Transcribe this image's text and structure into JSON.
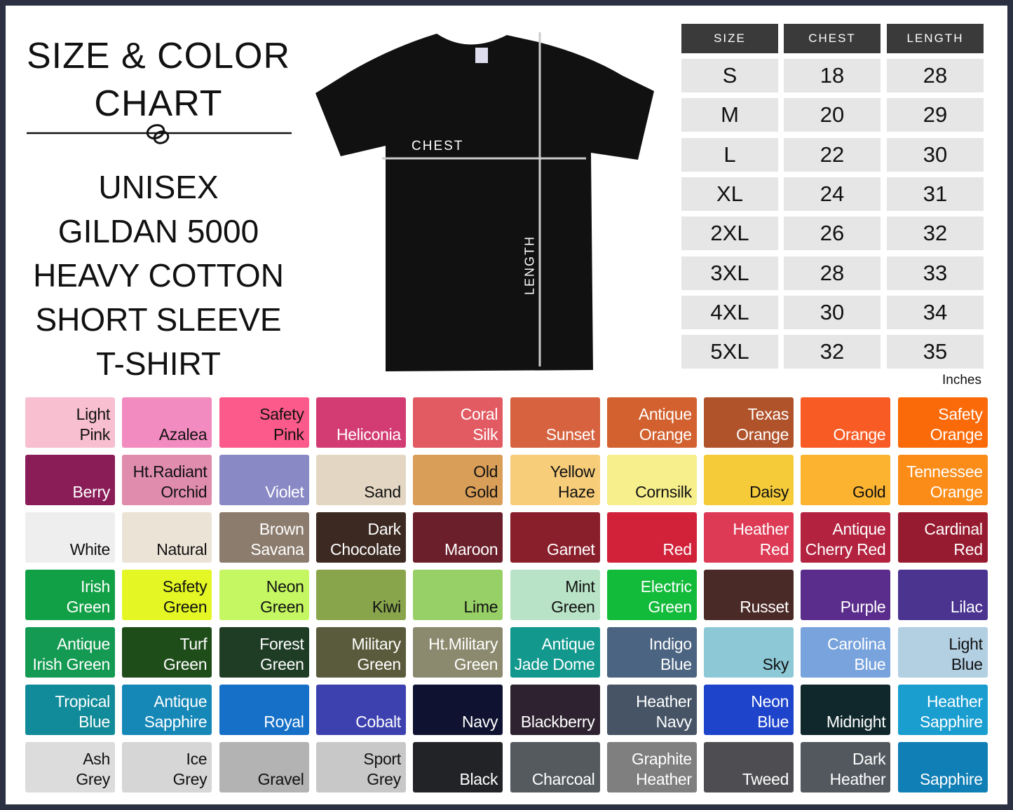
{
  "title": {
    "line1": "SIZE & COLOR",
    "line2": "CHART",
    "lines": [
      "UNISEX",
      "GILDAN 5000",
      "HEAVY COTTON",
      "SHORT SLEEVE",
      "T-SHIRT"
    ]
  },
  "shirt": {
    "chest_label": "CHEST",
    "length_label": "LENGTH",
    "color": "#111111"
  },
  "size_table": {
    "headers": [
      "SIZE",
      "CHEST",
      "LENGTH"
    ],
    "rows": [
      [
        "S",
        "18",
        "28"
      ],
      [
        "M",
        "20",
        "29"
      ],
      [
        "L",
        "22",
        "30"
      ],
      [
        "XL",
        "24",
        "31"
      ],
      [
        "2XL",
        "26",
        "32"
      ],
      [
        "3XL",
        "28",
        "33"
      ],
      [
        "4XL",
        "30",
        "34"
      ],
      [
        "5XL",
        "32",
        "35"
      ]
    ],
    "units": "Inches"
  },
  "colors": [
    {
      "name": "Light\nPink",
      "hex": "#f7bfd0",
      "text": "#111"
    },
    {
      "name": "Azalea",
      "hex": "#f28bbf",
      "text": "#111"
    },
    {
      "name": "Safety\nPink",
      "hex": "#fc5a8a",
      "text": "#111"
    },
    {
      "name": "Heliconia",
      "hex": "#d23c72",
      "text": "#fff"
    },
    {
      "name": "Coral\nSilk",
      "hex": "#e25a62",
      "text": "#fff"
    },
    {
      "name": "Sunset",
      "hex": "#d6623f",
      "text": "#fff"
    },
    {
      "name": "Antique\nOrange",
      "hex": "#d2612f",
      "text": "#fff"
    },
    {
      "name": "Texas\nOrange",
      "hex": "#b0532b",
      "text": "#fff"
    },
    {
      "name": "Orange",
      "hex": "#f85b24",
      "text": "#fff"
    },
    {
      "name": "Safety\nOrange",
      "hex": "#fb6a08",
      "text": "#fff"
    },
    {
      "name": "Berry",
      "hex": "#8a1d57",
      "text": "#fff"
    },
    {
      "name": "Ht.Radiant\nOrchid",
      "hex": "#e08cad",
      "text": "#111"
    },
    {
      "name": "Violet",
      "hex": "#8989c6",
      "text": "#fff"
    },
    {
      "name": "Sand",
      "hex": "#e3d7c3",
      "text": "#111"
    },
    {
      "name": "Old\nGold",
      "hex": "#d99e58",
      "text": "#111"
    },
    {
      "name": "Yellow\nHaze",
      "hex": "#f7cd7a",
      "text": "#111"
    },
    {
      "name": "Cornsilk",
      "hex": "#f7ef8c",
      "text": "#111"
    },
    {
      "name": "Daisy",
      "hex": "#f5cb3a",
      "text": "#111"
    },
    {
      "name": "Gold",
      "hex": "#fbb330",
      "text": "#111"
    },
    {
      "name": "Tennessee\nOrange",
      "hex": "#fb8c18",
      "text": "#fff"
    },
    {
      "name": "White",
      "hex": "#eeeeee",
      "text": "#111"
    },
    {
      "name": "Natural",
      "hex": "#ebe3d6",
      "text": "#111"
    },
    {
      "name": "Brown\nSavana",
      "hex": "#8c7c6e",
      "text": "#fff"
    },
    {
      "name": "Dark\nChocolate",
      "hex": "#3c2a22",
      "text": "#fff"
    },
    {
      "name": "Maroon",
      "hex": "#6a1f2b",
      "text": "#fff"
    },
    {
      "name": "Garnet",
      "hex": "#8a1f2c",
      "text": "#fff"
    },
    {
      "name": "Red",
      "hex": "#d1223a",
      "text": "#fff"
    },
    {
      "name": "Heather\nRed",
      "hex": "#dd3a55",
      "text": "#fff"
    },
    {
      "name": "Antique\nCherry Red",
      "hex": "#b3223f",
      "text": "#fff"
    },
    {
      "name": "Cardinal\nRed",
      "hex": "#971b30",
      "text": "#fff"
    },
    {
      "name": "Irish\nGreen",
      "hex": "#12a046",
      "text": "#fff"
    },
    {
      "name": "Safety\nGreen",
      "hex": "#e4f724",
      "text": "#111"
    },
    {
      "name": "Neon\nGreen",
      "hex": "#c4f761",
      "text": "#111"
    },
    {
      "name": "Kiwi",
      "hex": "#89a54c",
      "text": "#111"
    },
    {
      "name": "Lime",
      "hex": "#97d066",
      "text": "#111"
    },
    {
      "name": "Mint\nGreen",
      "hex": "#b9e3c6",
      "text": "#111"
    },
    {
      "name": "Electric\nGreen",
      "hex": "#13bb3b",
      "text": "#fff"
    },
    {
      "name": "Russet",
      "hex": "#4a2a26",
      "text": "#fff"
    },
    {
      "name": "Purple",
      "hex": "#5a2c8c",
      "text": "#fff"
    },
    {
      "name": "Lilac",
      "hex": "#4a3490",
      "text": "#fff"
    },
    {
      "name": "Antique\nIrish Green",
      "hex": "#149a52",
      "text": "#fff"
    },
    {
      "name": "Turf\nGreen",
      "hex": "#1f4d1a",
      "text": "#fff"
    },
    {
      "name": "Forest\nGreen",
      "hex": "#1f3d25",
      "text": "#fff"
    },
    {
      "name": "Military\nGreen",
      "hex": "#5a5b3c",
      "text": "#fff"
    },
    {
      "name": "Ht.Military\nGreen",
      "hex": "#8b8a6e",
      "text": "#fff"
    },
    {
      "name": "Antique\nJade Dome",
      "hex": "#12988d",
      "text": "#fff"
    },
    {
      "name": "Indigo\nBlue",
      "hex": "#4b6481",
      "text": "#fff"
    },
    {
      "name": "Sky",
      "hex": "#8cc8d5",
      "text": "#111"
    },
    {
      "name": "Carolina\nBlue",
      "hex": "#78a3dc",
      "text": "#fff"
    },
    {
      "name": "Light\nBlue",
      "hex": "#b3cfe2",
      "text": "#111"
    },
    {
      "name": "Tropical\nBlue",
      "hex": "#118b99",
      "text": "#fff"
    },
    {
      "name": "Antique\nSapphire",
      "hex": "#1688b8",
      "text": "#fff"
    },
    {
      "name": "Royal",
      "hex": "#1670c8",
      "text": "#fff"
    },
    {
      "name": "Cobalt",
      "hex": "#3d41b0",
      "text": "#fff"
    },
    {
      "name": "Navy",
      "hex": "#0f1230",
      "text": "#fff"
    },
    {
      "name": "Blackberry",
      "hex": "#2e2230",
      "text": "#fff"
    },
    {
      "name": "Heather\nNavy",
      "hex": "#465466",
      "text": "#fff"
    },
    {
      "name": "Neon\nBlue",
      "hex": "#1e44cc",
      "text": "#fff"
    },
    {
      "name": "Midnight",
      "hex": "#10282c",
      "text": "#fff"
    },
    {
      "name": "Heather\nSapphire",
      "hex": "#1a9ed0",
      "text": "#fff"
    },
    {
      "name": "Ash\nGrey",
      "hex": "#dcdcdc",
      "text": "#111"
    },
    {
      "name": "Ice\nGrey",
      "hex": "#d6d6d6",
      "text": "#111"
    },
    {
      "name": "Gravel",
      "hex": "#b3b3b3",
      "text": "#111"
    },
    {
      "name": "Sport\nGrey",
      "hex": "#c8c8c8",
      "text": "#111"
    },
    {
      "name": "Black",
      "hex": "#222326",
      "text": "#fff"
    },
    {
      "name": "Charcoal",
      "hex": "#555a5e",
      "text": "#fff"
    },
    {
      "name": "Graphite\nHeather",
      "hex": "#7f7f7f",
      "text": "#fff"
    },
    {
      "name": "Tweed",
      "hex": "#4e4e52",
      "text": "#fff"
    },
    {
      "name": "Dark\nHeather",
      "hex": "#52585e",
      "text": "#fff"
    },
    {
      "name": "Sapphire",
      "hex": "#0f7fb5",
      "text": "#fff"
    }
  ]
}
